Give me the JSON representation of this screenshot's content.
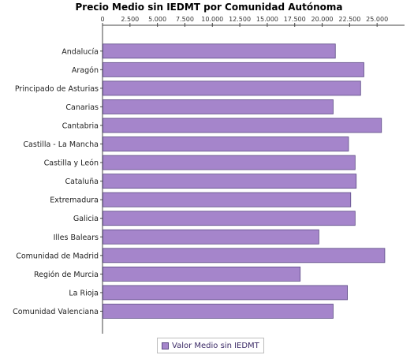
{
  "colors": {
    "bar_fill": "#a585cb",
    "bar_stroke": "#5b4a84",
    "axis": "#444444",
    "legend_text": "#3b2a66"
  },
  "chart_data": {
    "type": "bar",
    "orientation": "horizontal",
    "title": "Precio Medio sin IEDMT por Comunidad Autónoma",
    "xlabel": "",
    "ylabel": "",
    "xlim": [
      0,
      27500
    ],
    "x_ticks": [
      0,
      2500,
      5000,
      7500,
      10000,
      12500,
      15000,
      17500,
      20000,
      22500,
      25000
    ],
    "x_tick_labels": [
      "0",
      "2.500",
      "5.000",
      "7.500",
      "10.000",
      "12.500",
      "15.000",
      "17.500",
      "20.000",
      "22.500",
      "25.000"
    ],
    "x_axis_position": "top",
    "grid": false,
    "legend_position": "bottom",
    "categories": [
      "Andalucía",
      "Aragón",
      "Principado de Asturias",
      "Canarias",
      "Cantabria",
      "Castilla - La Mancha",
      "Castilla y León",
      "Cataluña",
      "Extremadura",
      "Galicia",
      "Illes Balears",
      "Comunidad de Madrid",
      "Región de Murcia",
      "La Rioja",
      "Comunidad Valenciana"
    ],
    "series": [
      {
        "name": "Valor Medio sin IEDMT",
        "values": [
          21200,
          23800,
          23500,
          21000,
          25400,
          22400,
          23000,
          23100,
          22600,
          23000,
          19700,
          25700,
          18000,
          22300,
          21000
        ]
      }
    ]
  }
}
